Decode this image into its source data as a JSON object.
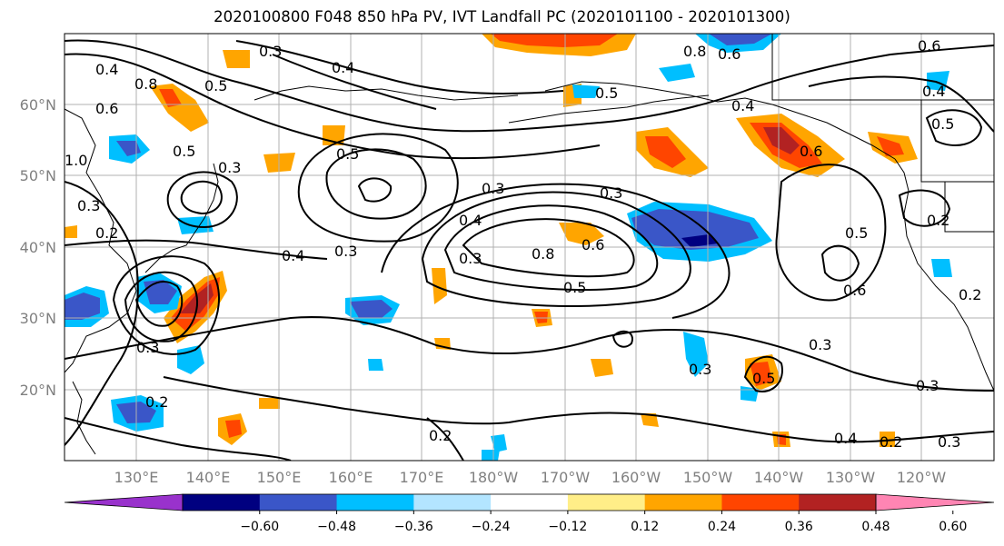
{
  "title": "2020100800 F048 850 hPa PV, IVT Landfall PC (2020101100 - 2020101300)",
  "lat_labels": [
    "60°N",
    "50°N",
    "40°N",
    "30°N",
    "20°N"
  ],
  "lon_labels": [
    "130°E",
    "140°E",
    "150°E",
    "160°E",
    "170°E",
    "180°W",
    "170°W",
    "160°W",
    "150°W",
    "140°W",
    "130°W",
    "120°W"
  ],
  "colorbar": {
    "colors": [
      "#9932cc",
      "#000080",
      "#3a56c8",
      "#00bfff",
      "#b3e5ff",
      "#ffffff",
      "#ffee88",
      "#ffa500",
      "#ff4500",
      "#b22222",
      "#ff85b3"
    ],
    "tick_labels": [
      "−0.60",
      "−0.48",
      "−0.36",
      "−0.24",
      "−0.12",
      "0.12",
      "0.24",
      "0.36",
      "0.48",
      "0.60"
    ]
  },
  "contour_labels": [
    "0.4",
    "0.5",
    "0.8",
    "0.6",
    "1.0",
    "0.3",
    "0.2",
    "0.5",
    "0.3",
    "0.4",
    "0.3",
    "0.3",
    "0.4",
    "0.3",
    "0.2",
    "0.3",
    "0.5",
    "0.6",
    "0.8",
    "0.5",
    "0.3",
    "0.3",
    "0.2",
    "0.3",
    "0.4",
    "0.6",
    "0.5",
    "0.6",
    "0.4",
    "0.3",
    "0.2",
    "0.3",
    "0.5",
    "0.6",
    "0.4",
    "0.2",
    "0.6",
    "0.8",
    "0.5",
    "0.2",
    "0.3",
    "0.5",
    "0.4"
  ]
}
